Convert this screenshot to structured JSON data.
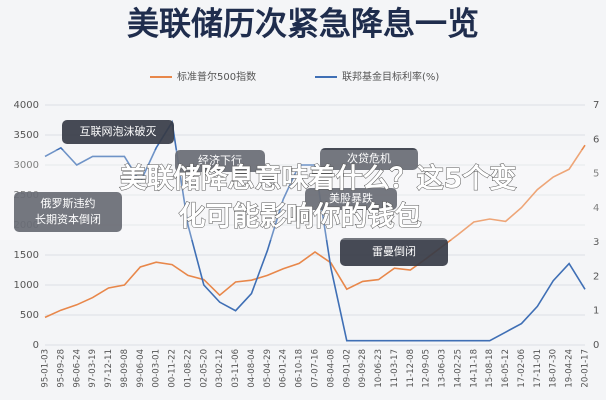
{
  "title": "美联储历次紧急降息一览",
  "overlay_title": [
    "美联储降息意味着什么？这5个变",
    "化可能影响你的钱包"
  ],
  "annotations": [
    "互联网泡沫破灭",
    "俄罗斯违约",
    "长期资本倒闭",
    "经济下行",
    "次贷危机",
    "美股暴跌",
    "雷曼倒闭"
  ],
  "chart_data": {
    "type": "line",
    "categories": [
      "95-01-03",
      "95-09-28",
      "96-06-24",
      "97-03-19",
      "97-12-11",
      "98-09-08",
      "99-06-04",
      "00-03-01",
      "00-11-22",
      "01-08-22",
      "02-05-20",
      "03-02-12",
      "03-11-06",
      "04-08-04",
      "05-04-29",
      "06-01-24",
      "06-10-18",
      "07-07-16",
      "08-04-08",
      "09-01-02",
      "09-09-28",
      "10-06-23",
      "11-03-17",
      "11-12-08",
      "12-09-05",
      "13-06-03",
      "14-02-25",
      "14-11-18",
      "15-08-18",
      "16-05-12",
      "17-02-06",
      "17-11-01",
      "18-07-30",
      "19-04-24",
      "20-01-17"
    ],
    "series": [
      {
        "name": "标准普尔500指数",
        "color": "#e8874a",
        "values": [
          460,
          580,
          670,
          790,
          950,
          1000,
          1300,
          1380,
          1340,
          1160,
          1090,
          830,
          1050,
          1080,
          1160,
          1270,
          1360,
          1550,
          1370,
          930,
          1060,
          1090,
          1280,
          1250,
          1440,
          1640,
          1840,
          2050,
          2100,
          2060,
          2290,
          2590,
          2800,
          2930,
          3330
        ]
      },
      {
        "name": "联邦基金目标利率(%)",
        "color": "#3f6fb5",
        "axis": "y2",
        "values": [
          5.5,
          5.75,
          5.25,
          5.5,
          5.5,
          5.5,
          4.75,
          5.75,
          6.5,
          3.5,
          1.75,
          1.25,
          1.0,
          1.5,
          2.75,
          4.25,
          5.25,
          5.25,
          2.25,
          0.125,
          0.125,
          0.125,
          0.125,
          0.125,
          0.125,
          0.125,
          0.125,
          0.125,
          0.125,
          0.375,
          0.625,
          1.125,
          1.875,
          2.375,
          1.625
        ]
      }
    ],
    "ylim": [
      0,
      4000
    ],
    "yticks": [
      0,
      500,
      1000,
      1500,
      2000,
      2500,
      3000,
      3500,
      4000
    ],
    "y2lim": [
      0,
      7
    ],
    "y2ticks": [
      0,
      1,
      2,
      3,
      4,
      5,
      6,
      7
    ]
  }
}
